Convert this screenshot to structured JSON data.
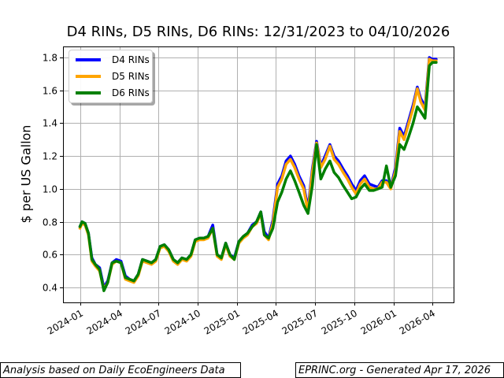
{
  "chart_data": {
    "type": "line",
    "title": "D4 RINs, D5 RINs, D6 RINs: 12/31/2023 to 04/10/2026",
    "xlabel": "",
    "ylabel": "$ per US Gallon",
    "x_tick_labels": [
      "2024-01",
      "2024-04",
      "2024-07",
      "2024-10",
      "2025-01",
      "2025-04",
      "2025-07",
      "2025-10",
      "2026-01",
      "2026-04"
    ],
    "y_tick_labels": [
      "0.4",
      "0.6",
      "0.8",
      "1.0",
      "1.2",
      "1.4",
      "1.6",
      "1.8"
    ],
    "y_ticks": [
      0.4,
      0.6,
      0.8,
      1.0,
      1.2,
      1.4,
      1.6,
      1.8
    ],
    "ylim": [
      0.31,
      1.87
    ],
    "xlim": [
      "2023-11-20",
      "2026-05-15"
    ],
    "grid": true,
    "legend_position": "upper left",
    "series": [
      {
        "name": "D4 RINs",
        "color": "#0000ff",
        "x": [
          "2023-12-31",
          "2024-01-05",
          "2024-01-12",
          "2024-01-20",
          "2024-01-28",
          "2024-02-05",
          "2024-02-15",
          "2024-02-25",
          "2024-03-05",
          "2024-03-15",
          "2024-03-25",
          "2024-04-05",
          "2024-04-15",
          "2024-04-25",
          "2024-05-05",
          "2024-05-15",
          "2024-05-25",
          "2024-06-05",
          "2024-06-15",
          "2024-06-25",
          "2024-07-05",
          "2024-07-15",
          "2024-07-25",
          "2024-08-05",
          "2024-08-15",
          "2024-08-25",
          "2024-09-05",
          "2024-09-15",
          "2024-09-25",
          "2024-10-05",
          "2024-10-15",
          "2024-10-25",
          "2024-11-05",
          "2024-11-15",
          "2024-11-25",
          "2024-12-05",
          "2024-12-15",
          "2024-12-25",
          "2025-01-05",
          "2025-01-15",
          "2025-01-25",
          "2025-02-05",
          "2025-02-15",
          "2025-02-25",
          "2025-03-05",
          "2025-03-15",
          "2025-03-25",
          "2025-04-05",
          "2025-04-15",
          "2025-04-25",
          "2025-05-05",
          "2025-05-15",
          "2025-05-25",
          "2025-06-05",
          "2025-06-15",
          "2025-06-25",
          "2025-07-05",
          "2025-07-15",
          "2025-07-25",
          "2025-08-05",
          "2025-08-15",
          "2025-08-25",
          "2025-09-05",
          "2025-09-15",
          "2025-09-25",
          "2025-10-05",
          "2025-10-15",
          "2025-10-25",
          "2025-11-05",
          "2025-11-15",
          "2025-11-25",
          "2025-12-05",
          "2025-12-15",
          "2025-12-25",
          "2026-01-05",
          "2026-01-15",
          "2026-01-25",
          "2026-02-05",
          "2026-02-15",
          "2026-02-25",
          "2026-03-05",
          "2026-03-15",
          "2026-03-25",
          "2026-04-01",
          "2026-04-10"
        ],
        "values": [
          0.77,
          0.8,
          0.79,
          0.73,
          0.58,
          0.54,
          0.52,
          0.4,
          0.44,
          0.55,
          0.57,
          0.56,
          0.47,
          0.45,
          0.44,
          0.48,
          0.57,
          0.56,
          0.55,
          0.57,
          0.65,
          0.66,
          0.63,
          0.57,
          0.55,
          0.58,
          0.57,
          0.6,
          0.69,
          0.7,
          0.7,
          0.71,
          0.78,
          0.6,
          0.58,
          0.67,
          0.6,
          0.58,
          0.68,
          0.71,
          0.73,
          0.78,
          0.8,
          0.86,
          0.74,
          0.7,
          0.81,
          1.03,
          1.08,
          1.17,
          1.2,
          1.15,
          1.08,
          1.02,
          0.88,
          1.12,
          1.29,
          1.14,
          1.2,
          1.27,
          1.2,
          1.17,
          1.12,
          1.08,
          1.03,
          0.99,
          1.05,
          1.08,
          1.03,
          1.02,
          1.01,
          1.05,
          1.05,
          1.01,
          1.13,
          1.37,
          1.32,
          1.42,
          1.51,
          1.62,
          1.55,
          1.5,
          1.8,
          1.79,
          1.79
        ]
      },
      {
        "name": "D5 RINs",
        "color": "#ffa500",
        "x": [
          "2023-12-31",
          "2024-01-05",
          "2024-01-12",
          "2024-01-20",
          "2024-01-28",
          "2024-02-05",
          "2024-02-15",
          "2024-02-25",
          "2024-03-05",
          "2024-03-15",
          "2024-03-25",
          "2024-04-05",
          "2024-04-15",
          "2024-04-25",
          "2024-05-05",
          "2024-05-15",
          "2024-05-25",
          "2024-06-05",
          "2024-06-15",
          "2024-06-25",
          "2024-07-05",
          "2024-07-15",
          "2024-07-25",
          "2024-08-05",
          "2024-08-15",
          "2024-08-25",
          "2024-09-05",
          "2024-09-15",
          "2024-09-25",
          "2024-10-05",
          "2024-10-15",
          "2024-10-25",
          "2024-11-05",
          "2024-11-15",
          "2024-11-25",
          "2024-12-05",
          "2024-12-15",
          "2024-12-25",
          "2025-01-05",
          "2025-01-15",
          "2025-01-25",
          "2025-02-05",
          "2025-02-15",
          "2025-02-25",
          "2025-03-05",
          "2025-03-15",
          "2025-03-25",
          "2025-04-05",
          "2025-04-15",
          "2025-04-25",
          "2025-05-05",
          "2025-05-15",
          "2025-05-25",
          "2025-06-05",
          "2025-06-15",
          "2025-06-25",
          "2025-07-05",
          "2025-07-15",
          "2025-07-25",
          "2025-08-05",
          "2025-08-15",
          "2025-08-25",
          "2025-09-05",
          "2025-09-15",
          "2025-09-25",
          "2025-10-05",
          "2025-10-15",
          "2025-10-25",
          "2025-11-05",
          "2025-11-15",
          "2025-11-25",
          "2025-12-05",
          "2025-12-15",
          "2025-12-25",
          "2026-01-05",
          "2026-01-15",
          "2026-01-25",
          "2026-02-05",
          "2026-02-15",
          "2026-02-25",
          "2026-03-05",
          "2026-03-15",
          "2026-03-25",
          "2026-04-01",
          "2026-04-10"
        ],
        "values": [
          0.76,
          0.79,
          0.78,
          0.72,
          0.56,
          0.53,
          0.5,
          0.39,
          0.43,
          0.54,
          0.56,
          0.55,
          0.45,
          0.44,
          0.43,
          0.47,
          0.56,
          0.55,
          0.54,
          0.56,
          0.64,
          0.65,
          0.62,
          0.56,
          0.54,
          0.57,
          0.56,
          0.59,
          0.68,
          0.69,
          0.69,
          0.7,
          0.76,
          0.59,
          0.57,
          0.66,
          0.59,
          0.57,
          0.67,
          0.7,
          0.72,
          0.77,
          0.79,
          0.85,
          0.72,
          0.69,
          0.79,
          1.01,
          1.06,
          1.15,
          1.18,
          1.13,
          1.06,
          1.0,
          0.86,
          1.1,
          1.28,
          1.13,
          1.18,
          1.26,
          1.18,
          1.15,
          1.1,
          1.06,
          1.01,
          0.97,
          1.03,
          1.06,
          1.01,
          1.0,
          1.0,
          1.04,
          1.04,
          1.0,
          1.11,
          1.35,
          1.3,
          1.4,
          1.49,
          1.61,
          1.53,
          1.48,
          1.79,
          1.78,
          1.78
        ]
      },
      {
        "name": "D6 RINs",
        "color": "#008000",
        "x": [
          "2023-12-31",
          "2024-01-05",
          "2024-01-12",
          "2024-01-20",
          "2024-01-28",
          "2024-02-05",
          "2024-02-15",
          "2024-02-25",
          "2024-03-05",
          "2024-03-15",
          "2024-03-25",
          "2024-04-05",
          "2024-04-15",
          "2024-04-25",
          "2024-05-05",
          "2024-05-15",
          "2024-05-25",
          "2024-06-05",
          "2024-06-15",
          "2024-06-25",
          "2024-07-05",
          "2024-07-15",
          "2024-07-25",
          "2024-08-05",
          "2024-08-15",
          "2024-08-25",
          "2024-09-05",
          "2024-09-15",
          "2024-09-25",
          "2024-10-05",
          "2024-10-15",
          "2024-10-25",
          "2024-11-05",
          "2024-11-15",
          "2024-11-25",
          "2024-12-05",
          "2024-12-15",
          "2024-12-25",
          "2025-01-05",
          "2025-01-15",
          "2025-01-25",
          "2025-02-05",
          "2025-02-15",
          "2025-02-25",
          "2025-03-05",
          "2025-03-15",
          "2025-03-25",
          "2025-04-05",
          "2025-04-15",
          "2025-04-25",
          "2025-05-05",
          "2025-05-15",
          "2025-05-25",
          "2025-06-05",
          "2025-06-15",
          "2025-06-25",
          "2025-07-05",
          "2025-07-15",
          "2025-07-25",
          "2025-08-05",
          "2025-08-15",
          "2025-08-25",
          "2025-09-05",
          "2025-09-15",
          "2025-09-25",
          "2025-10-05",
          "2025-10-15",
          "2025-10-25",
          "2025-11-05",
          "2025-11-15",
          "2025-11-25",
          "2025-12-05",
          "2025-12-15",
          "2025-12-25",
          "2026-01-05",
          "2026-01-15",
          "2026-01-25",
          "2026-02-05",
          "2026-02-15",
          "2026-02-25",
          "2026-03-05",
          "2026-03-15",
          "2026-03-25",
          "2026-04-01",
          "2026-04-10"
        ],
        "values": [
          0.77,
          0.8,
          0.79,
          0.73,
          0.57,
          0.54,
          0.51,
          0.38,
          0.43,
          0.55,
          0.56,
          0.55,
          0.46,
          0.45,
          0.44,
          0.48,
          0.57,
          0.56,
          0.55,
          0.57,
          0.65,
          0.66,
          0.63,
          0.57,
          0.55,
          0.58,
          0.57,
          0.6,
          0.69,
          0.7,
          0.7,
          0.71,
          0.76,
          0.6,
          0.58,
          0.67,
          0.6,
          0.57,
          0.68,
          0.71,
          0.73,
          0.77,
          0.8,
          0.86,
          0.72,
          0.7,
          0.76,
          0.92,
          0.98,
          1.06,
          1.11,
          1.05,
          0.98,
          0.9,
          0.85,
          1.02,
          1.27,
          1.06,
          1.12,
          1.17,
          1.1,
          1.07,
          1.02,
          0.98,
          0.94,
          0.95,
          1.0,
          1.03,
          0.99,
          0.99,
          1.0,
          1.01,
          1.14,
          1.01,
          1.08,
          1.27,
          1.24,
          1.32,
          1.4,
          1.5,
          1.47,
          1.43,
          1.75,
          1.77,
          1.77
        ]
      }
    ]
  },
  "legend": {
    "items": [
      {
        "label": "D4 RINs",
        "color": "#0000ff"
      },
      {
        "label": "D5 RINs",
        "color": "#ffa500"
      },
      {
        "label": "D6 RINs",
        "color": "#008000"
      }
    ]
  },
  "footer": {
    "left": "Analysis based on Daily EcoEngineers Data",
    "right": "EPRINC.org - Generated Apr 17, 2026"
  }
}
